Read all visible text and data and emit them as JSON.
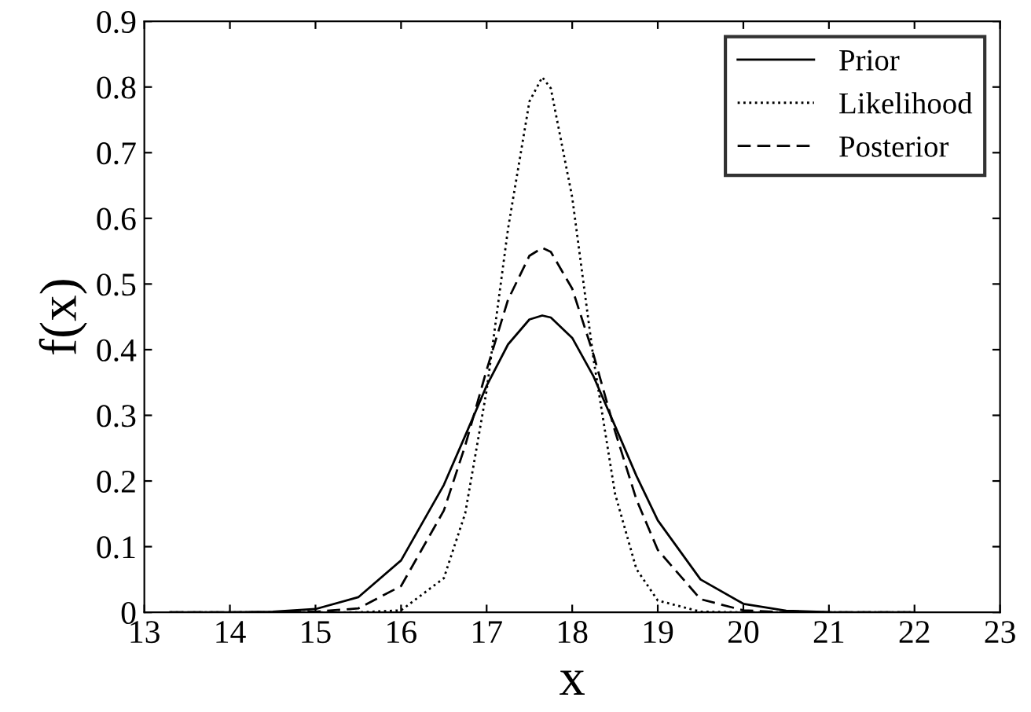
{
  "chart_data": {
    "type": "line",
    "xlabel": "x",
    "ylabel": "f(x)",
    "x": [
      13.3,
      14,
      14.5,
      15,
      15.5,
      16,
      16.5,
      16.75,
      17,
      17.25,
      17.5,
      17.65,
      17.75,
      18,
      18.25,
      18.5,
      18.75,
      19,
      19.5,
      20,
      20.5,
      21,
      21.5,
      22
    ],
    "series": [
      {
        "name": "Prior",
        "color": "#000000",
        "line_style": "solid",
        "values": [
          0,
          0.0001,
          0.0008,
          0.005,
          0.023,
          0.079,
          0.194,
          0.269,
          0.345,
          0.408,
          0.446,
          0.452,
          0.449,
          0.418,
          0.359,
          0.284,
          0.208,
          0.14,
          0.05,
          0.013,
          0.0025,
          0.0003,
          0,
          0
        ]
      },
      {
        "name": "Likelihood",
        "color": "#000000",
        "line_style": "dotted",
        "values": [
          0,
          0,
          0,
          0,
          0,
          0.003,
          0.052,
          0.151,
          0.338,
          0.584,
          0.778,
          0.815,
          0.798,
          0.632,
          0.385,
          0.181,
          0.066,
          0.018,
          0.001,
          0,
          0,
          0,
          0,
          0
        ]
      },
      {
        "name": "Posterior",
        "color": "#000000",
        "line_style": "dashed",
        "values": [
          0,
          0,
          0,
          0.001,
          0.006,
          0.04,
          0.155,
          0.254,
          0.369,
          0.476,
          0.543,
          0.555,
          0.549,
          0.493,
          0.392,
          0.276,
          0.172,
          0.095,
          0.02,
          0.003,
          0,
          0,
          0,
          0
        ]
      }
    ],
    "xlim": [
      13,
      23
    ],
    "xticks": [
      13,
      14,
      15,
      16,
      17,
      18,
      19,
      20,
      21,
      22,
      23
    ],
    "ylim": [
      0,
      0.9
    ],
    "yticks": [
      0,
      0.1,
      0.2,
      0.3,
      0.4,
      0.5,
      0.6,
      0.7,
      0.8,
      0.9
    ],
    "legend": "top right",
    "grid": false
  }
}
